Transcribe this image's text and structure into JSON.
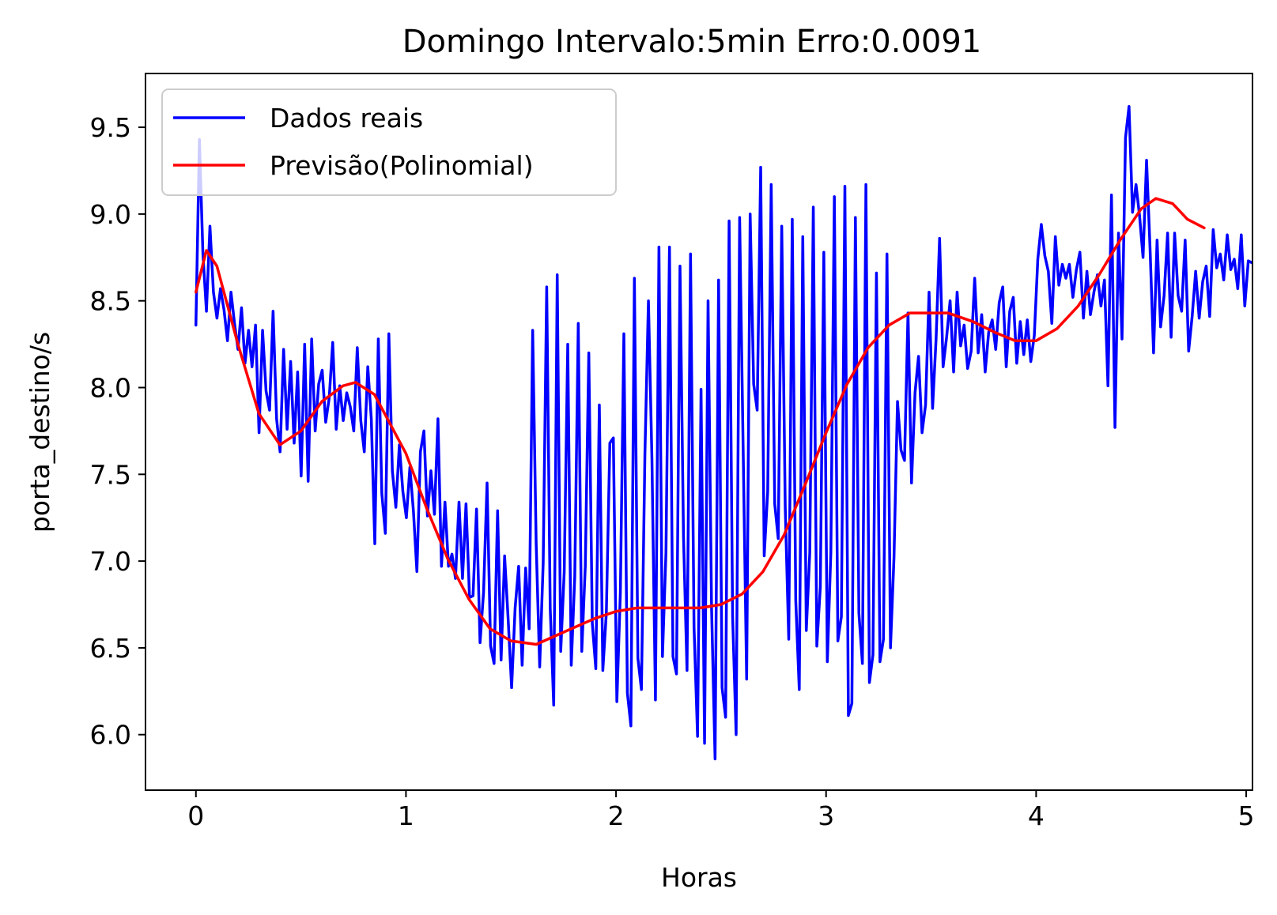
{
  "chart_data": {
    "type": "line",
    "title": "Domingo Intervalo:5min Erro:0.0091",
    "xlabel": "Horas",
    "ylabel": "porta_destino/s",
    "xlim": [
      -0.24,
      5.03
    ],
    "ylim": [
      5.68,
      9.81
    ],
    "x_ticks": [
      0,
      1,
      2,
      3,
      4,
      5
    ],
    "y_ticks": [
      6.0,
      6.5,
      7.0,
      7.5,
      8.0,
      8.5,
      9.0,
      9.5
    ],
    "x_tick_labels": [
      "0",
      "1",
      "2",
      "3",
      "4",
      "5"
    ],
    "y_tick_labels": [
      "6.0",
      "6.5",
      "7.0",
      "7.5",
      "8.0",
      "8.5",
      "9.0",
      "9.5"
    ],
    "grid": false,
    "legend_position": "top-left",
    "series": [
      {
        "name": "Dados reais",
        "color": "#0000ff",
        "step": 0.0167,
        "x_start": 0,
        "values": [
          8.36,
          9.43,
          8.77,
          8.44,
          8.93,
          8.55,
          8.4,
          8.57,
          8.45,
          8.27,
          8.55,
          8.37,
          8.22,
          8.46,
          8.14,
          8.33,
          8.12,
          8.36,
          7.74,
          8.33,
          7.98,
          7.87,
          8.44,
          7.82,
          7.63,
          8.22,
          7.76,
          8.15,
          7.68,
          8.09,
          7.49,
          8.25,
          7.46,
          8.28,
          7.75,
          8.02,
          8.1,
          7.8,
          7.94,
          8.26,
          7.76,
          8.01,
          7.81,
          7.97,
          7.89,
          7.75,
          8.23,
          7.81,
          7.63,
          8.12,
          7.82,
          7.1,
          8.28,
          7.39,
          7.16,
          8.31,
          7.52,
          7.31,
          7.67,
          7.4,
          7.25,
          7.54,
          7.29,
          6.94,
          7.63,
          7.75,
          7.26,
          7.52,
          7.27,
          7.82,
          6.97,
          7.34,
          6.97,
          7.04,
          6.9,
          7.34,
          6.9,
          7.33,
          6.79,
          6.8,
          7.3,
          6.53,
          6.82,
          7.45,
          6.51,
          6.41,
          7.29,
          6.43,
          7.03,
          6.67,
          6.27,
          6.73,
          6.97,
          6.4,
          6.96,
          6.61,
          8.33,
          7.1,
          6.39,
          6.99,
          8.58,
          6.73,
          6.17,
          8.65,
          6.48,
          6.94,
          8.25,
          6.4,
          6.91,
          8.37,
          6.48,
          6.97,
          8.2,
          6.64,
          6.38,
          7.9,
          6.37,
          6.7,
          7.68,
          7.71,
          6.19,
          6.82,
          8.31,
          6.24,
          6.05,
          8.63,
          6.44,
          6.26,
          7.62,
          8.5,
          7.59,
          6.2,
          8.81,
          6.45,
          7.05,
          8.81,
          6.45,
          6.35,
          8.7,
          7.14,
          6.37,
          8.77,
          6.62,
          5.99,
          7.99,
          5.95,
          8.5,
          6.73,
          5.86,
          8.62,
          6.27,
          6.1,
          8.96,
          6.68,
          6.0,
          8.98,
          7.65,
          6.32,
          9.0,
          8.02,
          7.87,
          9.27,
          7.03,
          7.4,
          9.17,
          7.33,
          7.13,
          8.93,
          7.31,
          6.55,
          8.97,
          6.77,
          6.26,
          8.87,
          6.6,
          7.05,
          9.04,
          6.51,
          6.85,
          8.78,
          6.42,
          7.05,
          9.1,
          6.54,
          6.68,
          9.16,
          6.11,
          6.18,
          8.98,
          6.7,
          6.41,
          9.17,
          6.3,
          6.46,
          8.66,
          6.42,
          6.55,
          8.77,
          6.5,
          7.02,
          7.92,
          7.64,
          7.58,
          8.43,
          7.45,
          7.97,
          8.18,
          7.74,
          7.9,
          8.55,
          7.88,
          8.28,
          8.86,
          8.12,
          8.29,
          8.5,
          8.09,
          8.55,
          8.24,
          8.36,
          8.11,
          8.21,
          8.63,
          8.2,
          8.42,
          8.09,
          8.32,
          8.39,
          8.22,
          8.49,
          8.58,
          8.12,
          8.44,
          8.52,
          8.14,
          8.38,
          8.19,
          8.39,
          8.15,
          8.3,
          8.74,
          8.94,
          8.76,
          8.67,
          8.37,
          8.87,
          8.59,
          8.71,
          8.63,
          8.71,
          8.52,
          8.68,
          8.78,
          8.4,
          8.67,
          8.42,
          8.55,
          8.65,
          8.47,
          8.62,
          8.01,
          9.11,
          7.77,
          8.89,
          8.28,
          9.44,
          9.62,
          9.01,
          9.17,
          8.99,
          8.75,
          9.31,
          8.8,
          8.2,
          8.85,
          8.35,
          8.53,
          8.89,
          8.29,
          8.89,
          8.53,
          8.44,
          8.85,
          8.21,
          8.41,
          8.67,
          8.4,
          8.61,
          8.7,
          8.41,
          8.91,
          8.69,
          8.77,
          8.62,
          8.88,
          8.68,
          8.74,
          8.57,
          8.88,
          8.47,
          8.73,
          8.72
        ]
      },
      {
        "name": "Previsão(Polinomial)",
        "color": "#ff0000",
        "x": [
          0.0,
          0.05,
          0.1,
          0.2,
          0.3,
          0.4,
          0.5,
          0.6,
          0.7,
          0.76,
          0.85,
          1.0,
          1.1,
          1.2,
          1.3,
          1.4,
          1.5,
          1.62,
          1.75,
          1.9,
          2.0,
          2.1,
          2.25,
          2.4,
          2.5,
          2.6,
          2.7,
          2.8,
          2.9,
          3.0,
          3.1,
          3.2,
          3.3,
          3.4,
          3.5,
          3.58,
          3.7,
          3.8,
          3.9,
          4.0,
          4.1,
          4.2,
          4.3,
          4.4,
          4.5,
          4.57,
          4.65,
          4.72,
          4.8
        ],
        "values": [
          8.55,
          8.79,
          8.7,
          8.25,
          7.85,
          7.67,
          7.75,
          7.92,
          8.01,
          8.03,
          7.96,
          7.62,
          7.3,
          7.01,
          6.78,
          6.61,
          6.54,
          6.52,
          6.59,
          6.67,
          6.71,
          6.73,
          6.73,
          6.73,
          6.75,
          6.81,
          6.94,
          7.15,
          7.44,
          7.74,
          8.02,
          8.23,
          8.36,
          8.43,
          8.43,
          8.43,
          8.38,
          8.32,
          8.27,
          8.27,
          8.34,
          8.47,
          8.65,
          8.85,
          9.03,
          9.09,
          9.06,
          8.97,
          8.92
        ]
      }
    ]
  }
}
